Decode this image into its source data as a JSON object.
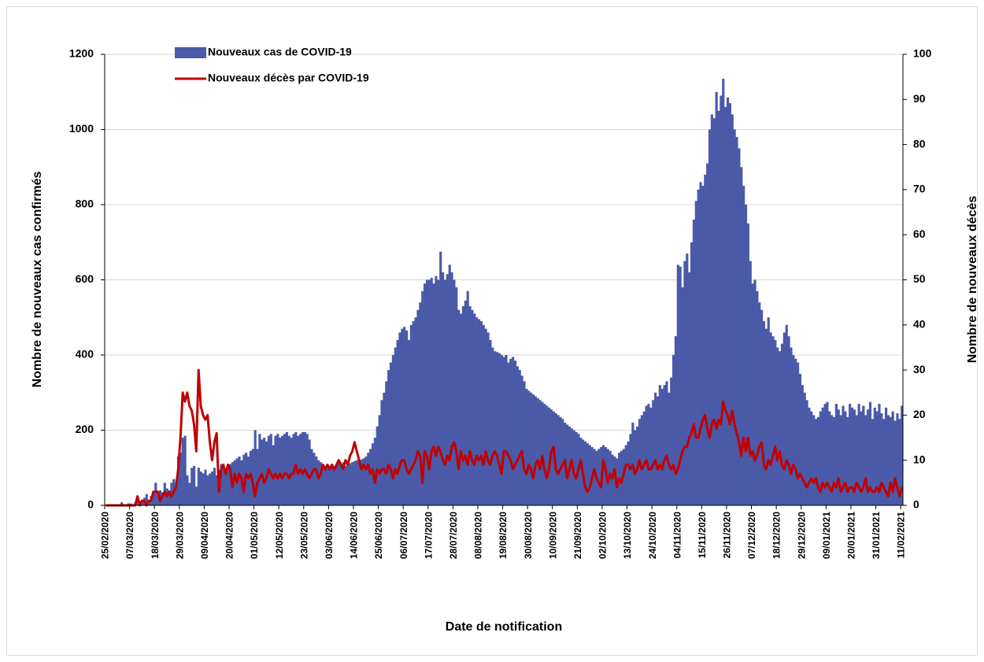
{
  "chart_data": {
    "type": "bar",
    "y_label": "Nombre de nouveaux cas confirmés",
    "y2_label": "Nombre de nouveaux  décès",
    "x_label": "Date de notification",
    "ylim": [
      0,
      1200
    ],
    "yticks": [
      0,
      200,
      400,
      600,
      800,
      1000,
      1200
    ],
    "y2lim": [
      0,
      100
    ],
    "y2ticks": [
      0,
      10,
      20,
      30,
      40,
      50,
      60,
      70,
      80,
      90,
      100
    ],
    "grid": true,
    "legend": "top-left",
    "categories": [
      "25/02/2020",
      null,
      null,
      null,
      null,
      null,
      null,
      null,
      null,
      null,
      null,
      "07/03/2020",
      null,
      null,
      null,
      null,
      null,
      null,
      null,
      null,
      null,
      null,
      "18/03/2020",
      null,
      null,
      null,
      null,
      null,
      null,
      null,
      null,
      null,
      null,
      "29/03/2020",
      null,
      null,
      null,
      null,
      null,
      null,
      null,
      null,
      null,
      null,
      "09/04/2020",
      null,
      null,
      null,
      null,
      null,
      null,
      null,
      null,
      null,
      null,
      "20/04/2020",
      null,
      null,
      null,
      null,
      null,
      null,
      null,
      null,
      null,
      null,
      "01/05/2020",
      null,
      null,
      null,
      null,
      null,
      null,
      null,
      null,
      null,
      null,
      "12/05/2020",
      null,
      null,
      null,
      null,
      null,
      null,
      null,
      null,
      null,
      null,
      "23/05/2020",
      null,
      null,
      null,
      null,
      null,
      null,
      null,
      null,
      null,
      null,
      "03/06/2020",
      null,
      null,
      null,
      null,
      null,
      null,
      null,
      null,
      null,
      null,
      "14/06/2020",
      null,
      null,
      null,
      null,
      null,
      null,
      null,
      null,
      null,
      null,
      "25/06/2020",
      null,
      null,
      null,
      null,
      null,
      null,
      null,
      null,
      null,
      null,
      "06/07/2020",
      null,
      null,
      null,
      null,
      null,
      null,
      null,
      null,
      null,
      null,
      "17/07/2020",
      null,
      null,
      null,
      null,
      null,
      null,
      null,
      null,
      null,
      null,
      "28/07/2020",
      null,
      null,
      null,
      null,
      null,
      null,
      null,
      null,
      null,
      null,
      "08/08/2020",
      null,
      null,
      null,
      null,
      null,
      null,
      null,
      null,
      null,
      null,
      "19/08/2020",
      null,
      null,
      null,
      null,
      null,
      null,
      null,
      null,
      null,
      null,
      "30/08/2020",
      null,
      null,
      null,
      null,
      null,
      null,
      null,
      null,
      null,
      null,
      "10/09/2020",
      null,
      null,
      null,
      null,
      null,
      null,
      null,
      null,
      null,
      null,
      "21/09/2020",
      null,
      null,
      null,
      null,
      null,
      null,
      null,
      null,
      null,
      null,
      "02/10/2020",
      null,
      null,
      null,
      null,
      null,
      null,
      null,
      null,
      null,
      null,
      "13/10/2020",
      null,
      null,
      null,
      null,
      null,
      null,
      null,
      null,
      null,
      null,
      "24/10/2020",
      null,
      null,
      null,
      null,
      null,
      null,
      null,
      null,
      null,
      null,
      "04/11/2020",
      null,
      null,
      null,
      null,
      null,
      null,
      null,
      null,
      null,
      null,
      "15/11/2020",
      null,
      null,
      null,
      null,
      null,
      null,
      null,
      null,
      null,
      null,
      "26/11/2020",
      null,
      null,
      null,
      null,
      null,
      null,
      null,
      null,
      null,
      null,
      "07/12/2020",
      null,
      null,
      null,
      null,
      null,
      null,
      null,
      null,
      null,
      null,
      "18/12/2020",
      null,
      null,
      null,
      null,
      null,
      null,
      null,
      null,
      null,
      null,
      "29/12/2020",
      null,
      null,
      null,
      null,
      null,
      null,
      null,
      null,
      null,
      null,
      "09/01/2021",
      null,
      null,
      null,
      null,
      null,
      null,
      null,
      null,
      null,
      null,
      "20/01/2021",
      null,
      null,
      null,
      null,
      null,
      null,
      null,
      null,
      null,
      null,
      "31/01/2021",
      null,
      null,
      null,
      null,
      null,
      null,
      null,
      null,
      null,
      null,
      "11/02/2021"
    ],
    "series": [
      {
        "name": "Nouveaux cas de COVID-19",
        "type": "bar",
        "color": "#4a5aa8",
        "values": [
          0,
          0,
          0,
          0,
          0,
          0,
          2,
          8,
          3,
          2,
          5,
          5,
          3,
          8,
          10,
          12,
          15,
          20,
          30,
          15,
          25,
          35,
          60,
          30,
          40,
          35,
          60,
          45,
          40,
          60,
          70,
          50,
          130,
          140,
          180,
          185,
          80,
          60,
          100,
          105,
          50,
          100,
          90,
          85,
          95,
          80,
          85,
          90,
          100,
          80,
          95,
          110,
          100,
          95,
          105,
          110,
          115,
          120,
          125,
          130,
          120,
          135,
          140,
          130,
          145,
          150,
          200,
          150,
          190,
          175,
          180,
          170,
          185,
          190,
          160,
          185,
          190,
          180,
          185,
          190,
          195,
          185,
          180,
          190,
          195,
          185,
          190,
          195,
          195,
          190,
          175,
          150,
          140,
          130,
          120,
          115,
          110,
          105,
          100,
          105,
          110,
          100,
          108,
          112,
          110,
          115,
          105,
          110,
          112,
          115,
          118,
          120,
          115,
          122,
          125,
          130,
          140,
          150,
          165,
          180,
          210,
          240,
          280,
          300,
          330,
          360,
          380,
          400,
          420,
          440,
          460,
          470,
          475,
          465,
          440,
          480,
          490,
          500,
          520,
          540,
          570,
          590,
          600,
          600,
          605,
          590,
          610,
          600,
          675,
          620,
          600,
          615,
          640,
          620,
          600,
          580,
          520,
          510,
          530,
          545,
          570,
          530,
          520,
          510,
          500,
          495,
          490,
          480,
          470,
          460,
          440,
          420,
          410,
          408,
          405,
          400,
          395,
          400,
          380,
          390,
          395,
          385,
          370,
          360,
          345,
          330,
          310,
          305,
          300,
          295,
          290,
          285,
          280,
          275,
          270,
          265,
          260,
          255,
          250,
          245,
          240,
          235,
          230,
          220,
          215,
          210,
          205,
          200,
          195,
          190,
          180,
          175,
          170,
          165,
          160,
          155,
          150,
          145,
          150,
          155,
          160,
          155,
          150,
          145,
          135,
          130,
          125,
          140,
          145,
          150,
          160,
          170,
          190,
          220,
          200,
          210,
          230,
          240,
          250,
          265,
          270,
          260,
          280,
          300,
          290,
          320,
          310,
          320,
          330,
          300,
          340,
          400,
          450,
          640,
          635,
          580,
          650,
          670,
          620,
          700,
          760,
          810,
          840,
          860,
          850,
          880,
          910,
          1000,
          1040,
          1030,
          1100,
          1050,
          1090,
          1135,
          1060,
          1085,
          1070,
          1040,
          1000,
          980,
          950,
          900,
          850,
          800,
          750,
          650,
          590,
          600,
          570,
          540,
          520,
          490,
          470,
          500,
          460,
          450,
          440,
          420,
          410,
          430,
          460,
          480,
          450,
          420,
          400,
          390,
          380,
          350,
          320,
          300,
          280,
          260,
          250,
          240,
          230,
          235,
          250,
          260,
          270,
          275,
          250,
          240,
          235,
          270,
          255,
          240,
          265,
          250,
          235,
          270,
          260,
          255,
          240,
          270,
          250,
          265,
          240,
          255,
          275,
          230,
          260,
          250,
          270,
          245,
          230,
          260,
          240,
          235,
          250,
          225,
          245,
          230,
          265
        ]
      },
      {
        "name": "Nouveaux décès par COVID-19",
        "type": "line",
        "axis": "y2",
        "color": "#c00000",
        "values": [
          0,
          0,
          0,
          0,
          0,
          0,
          0,
          0,
          0,
          0,
          0,
          0,
          0,
          0,
          2,
          0,
          1,
          1,
          0,
          1,
          1,
          3,
          3,
          3,
          1,
          2,
          3,
          2,
          3,
          2,
          3,
          4,
          8,
          15,
          25,
          23,
          25,
          22,
          21,
          18,
          12,
          30,
          22,
          20,
          19,
          20,
          14,
          10,
          14,
          16,
          3,
          8,
          9,
          7,
          9,
          8,
          4,
          7,
          5,
          7,
          6,
          3,
          7,
          6,
          7,
          5,
          2,
          5,
          6,
          7,
          5,
          6,
          8,
          7,
          6,
          7,
          6,
          7,
          6,
          7,
          7,
          6,
          7,
          7,
          9,
          7,
          8,
          7,
          8,
          7,
          6,
          7,
          8,
          8,
          6,
          7,
          9,
          8,
          9,
          8,
          9,
          8,
          9,
          10,
          9,
          8,
          10,
          9,
          11,
          12,
          14,
          12,
          10,
          8,
          9,
          8,
          9,
          7,
          8,
          5,
          8,
          7,
          8,
          8,
          7,
          9,
          8,
          6,
          8,
          7,
          9,
          10,
          10,
          8,
          7,
          8,
          9,
          10,
          12,
          11,
          5,
          12,
          11,
          8,
          12,
          13,
          11,
          13,
          12,
          10,
          9,
          11,
          10,
          13,
          14,
          12,
          8,
          12,
          10,
          11,
          9,
          12,
          10,
          9,
          11,
          10,
          11,
          9,
          12,
          10,
          9,
          11,
          12,
          11,
          9,
          7,
          12,
          12,
          11,
          10,
          8,
          9,
          10,
          11,
          12,
          8,
          7,
          9,
          8,
          6,
          9,
          10,
          8,
          11,
          8,
          6,
          8,
          12,
          13,
          8,
          7,
          8,
          9,
          10,
          6,
          8,
          10,
          7,
          6,
          8,
          10,
          7,
          4,
          3,
          4,
          6,
          8,
          6,
          5,
          4,
          10,
          8,
          5,
          7,
          6,
          8,
          4,
          6,
          5,
          7,
          9,
          9,
          8,
          9,
          7,
          8,
          10,
          8,
          9,
          10,
          8,
          8,
          9,
          10,
          8,
          9,
          8,
          10,
          11,
          9,
          8,
          9,
          7,
          8,
          10,
          12,
          13,
          13,
          15,
          16,
          18,
          15,
          15,
          17,
          19,
          20,
          17,
          15,
          18,
          19,
          17,
          19,
          18,
          23,
          21,
          20,
          18,
          21,
          18,
          16,
          14,
          11,
          15,
          12,
          15,
          11,
          12,
          10,
          11,
          13,
          14,
          9,
          8,
          10,
          9,
          11,
          13,
          10,
          12,
          9,
          8,
          10,
          9,
          7,
          9,
          8,
          6,
          7,
          6,
          5,
          4,
          5,
          6,
          5,
          6,
          4,
          3,
          5,
          4,
          5,
          4,
          3,
          5,
          4,
          6,
          3,
          4,
          5,
          3,
          4,
          4,
          3,
          5,
          4,
          3,
          4,
          6,
          3,
          4,
          3,
          3,
          4,
          3,
          5,
          4,
          3,
          2,
          5,
          3,
          6,
          4,
          2,
          4
        ]
      }
    ]
  }
}
